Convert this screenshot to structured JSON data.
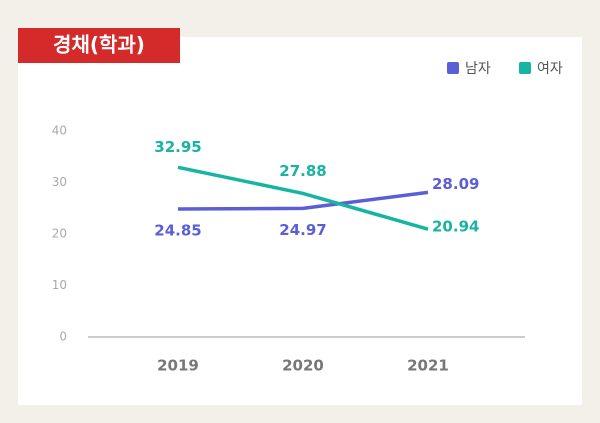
{
  "chart_data": {
    "type": "line",
    "title": "경채(학과)",
    "categories": [
      "2019",
      "2020",
      "2021"
    ],
    "series": [
      {
        "name": "남자",
        "color": "#5b5fd6",
        "values": [
          24.85,
          24.97,
          28.09
        ]
      },
      {
        "name": "여자",
        "color": "#17b3a3",
        "values": [
          32.95,
          27.88,
          20.94
        ]
      }
    ],
    "ylim": [
      0,
      40
    ],
    "yticks": [
      0,
      10,
      20,
      30,
      40
    ],
    "grid": false,
    "legend": "top-right"
  }
}
